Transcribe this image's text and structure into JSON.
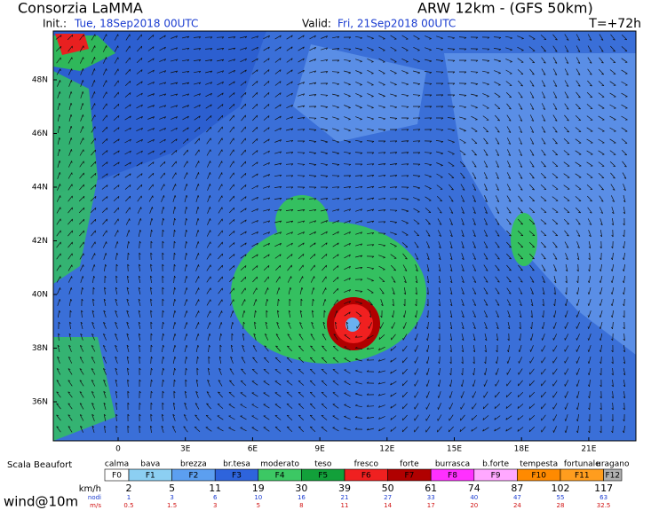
{
  "header": {
    "title": "Consorzia LaMMA",
    "model": "ARW 12km - (GFS 50km)",
    "init_label": "Init.:",
    "init_value": "Tue, 18Sep2018 00UTC",
    "valid_label": "Valid:",
    "valid_value": "Fri, 21Sep2018 00UTC",
    "lead": "T=+72h"
  },
  "map": {
    "lat_labels": [
      "48N",
      "46N",
      "44N",
      "42N",
      "40N",
      "38N",
      "36N"
    ],
    "lon_labels": [
      "0",
      "3E",
      "6E",
      "9E",
      "12E",
      "15E",
      "18E",
      "21E"
    ]
  },
  "legend": {
    "title": "Scala Beaufort",
    "field": "wind@10m",
    "classes": [
      {
        "name": "calma",
        "code": "F0",
        "color": "#ffffff"
      },
      {
        "name": "bava",
        "code": "F1",
        "color": "#8ccff2"
      },
      {
        "name": "brezza",
        "code": "F2",
        "color": "#5c9ff0"
      },
      {
        "name": "br.tesa",
        "code": "F3",
        "color": "#2e64dc"
      },
      {
        "name": "moderato",
        "code": "F4",
        "color": "#3cc864"
      },
      {
        "name": "teso",
        "code": "F5",
        "color": "#12a03a"
      },
      {
        "name": "fresco",
        "code": "F6",
        "color": "#f02020"
      },
      {
        "name": "forte",
        "code": "F7",
        "color": "#b00000"
      },
      {
        "name": "burrasca",
        "code": "F8",
        "color": "#ff30ff"
      },
      {
        "name": "b.forte",
        "code": "F9",
        "color": "#ffa8ff"
      },
      {
        "name": "tempesta",
        "code": "F10",
        "color": "#ff8a00"
      },
      {
        "name": "fortunale",
        "code": "F11",
        "color": "#ff9d1e"
      },
      {
        "name": "uragano",
        "code": "F12",
        "color": "#b0b0b0"
      }
    ],
    "kmh_label": "km/h",
    "kmh": [
      "2",
      "5",
      "11",
      "19",
      "30",
      "39",
      "50",
      "61",
      "74",
      "87",
      "102",
      "117"
    ],
    "kn_label": "nodi",
    "kn": [
      "1",
      "3",
      "6",
      "10",
      "16",
      "21",
      "27",
      "33",
      "40",
      "47",
      "55",
      "63"
    ],
    "ms_label": "m/s",
    "ms": [
      "0.5",
      "1.5",
      "3",
      "5",
      "8",
      "11",
      "14",
      "17",
      "20",
      "24",
      "28",
      "32.5"
    ]
  }
}
